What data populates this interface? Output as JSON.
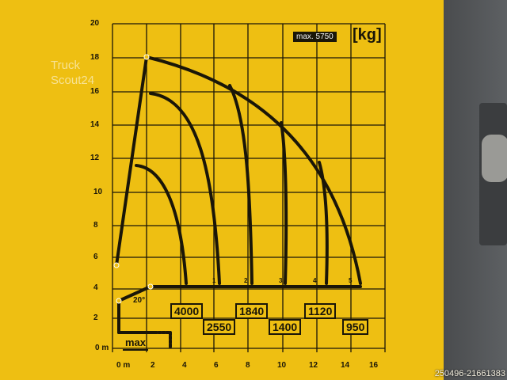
{
  "chart": {
    "unit_label": "[kg]",
    "max_label": "max. 5750",
    "y_ticks": [
      "20",
      "18",
      "16",
      "14",
      "12",
      "10",
      "8",
      "6",
      "4",
      "2",
      "0 m"
    ],
    "x_ticks": [
      "0 m",
      "2",
      "4",
      "6",
      "8",
      "10",
      "12",
      "14",
      "16"
    ],
    "extension_labels": [
      "1",
      "2",
      "3",
      "4",
      "5"
    ],
    "loads": [
      "4000",
      "2550",
      "1840",
      "1400",
      "1120",
      "950"
    ],
    "angle_label": "20°",
    "max_arrow_label": "max"
  },
  "watermark": {
    "line1": "Truck",
    "line2": "Scout24"
  },
  "image_id_text": "250496-21661383",
  "colors": {
    "sticker": "#eebf12",
    "ink": "#1a1608",
    "panel": "#4a4c4e"
  }
}
